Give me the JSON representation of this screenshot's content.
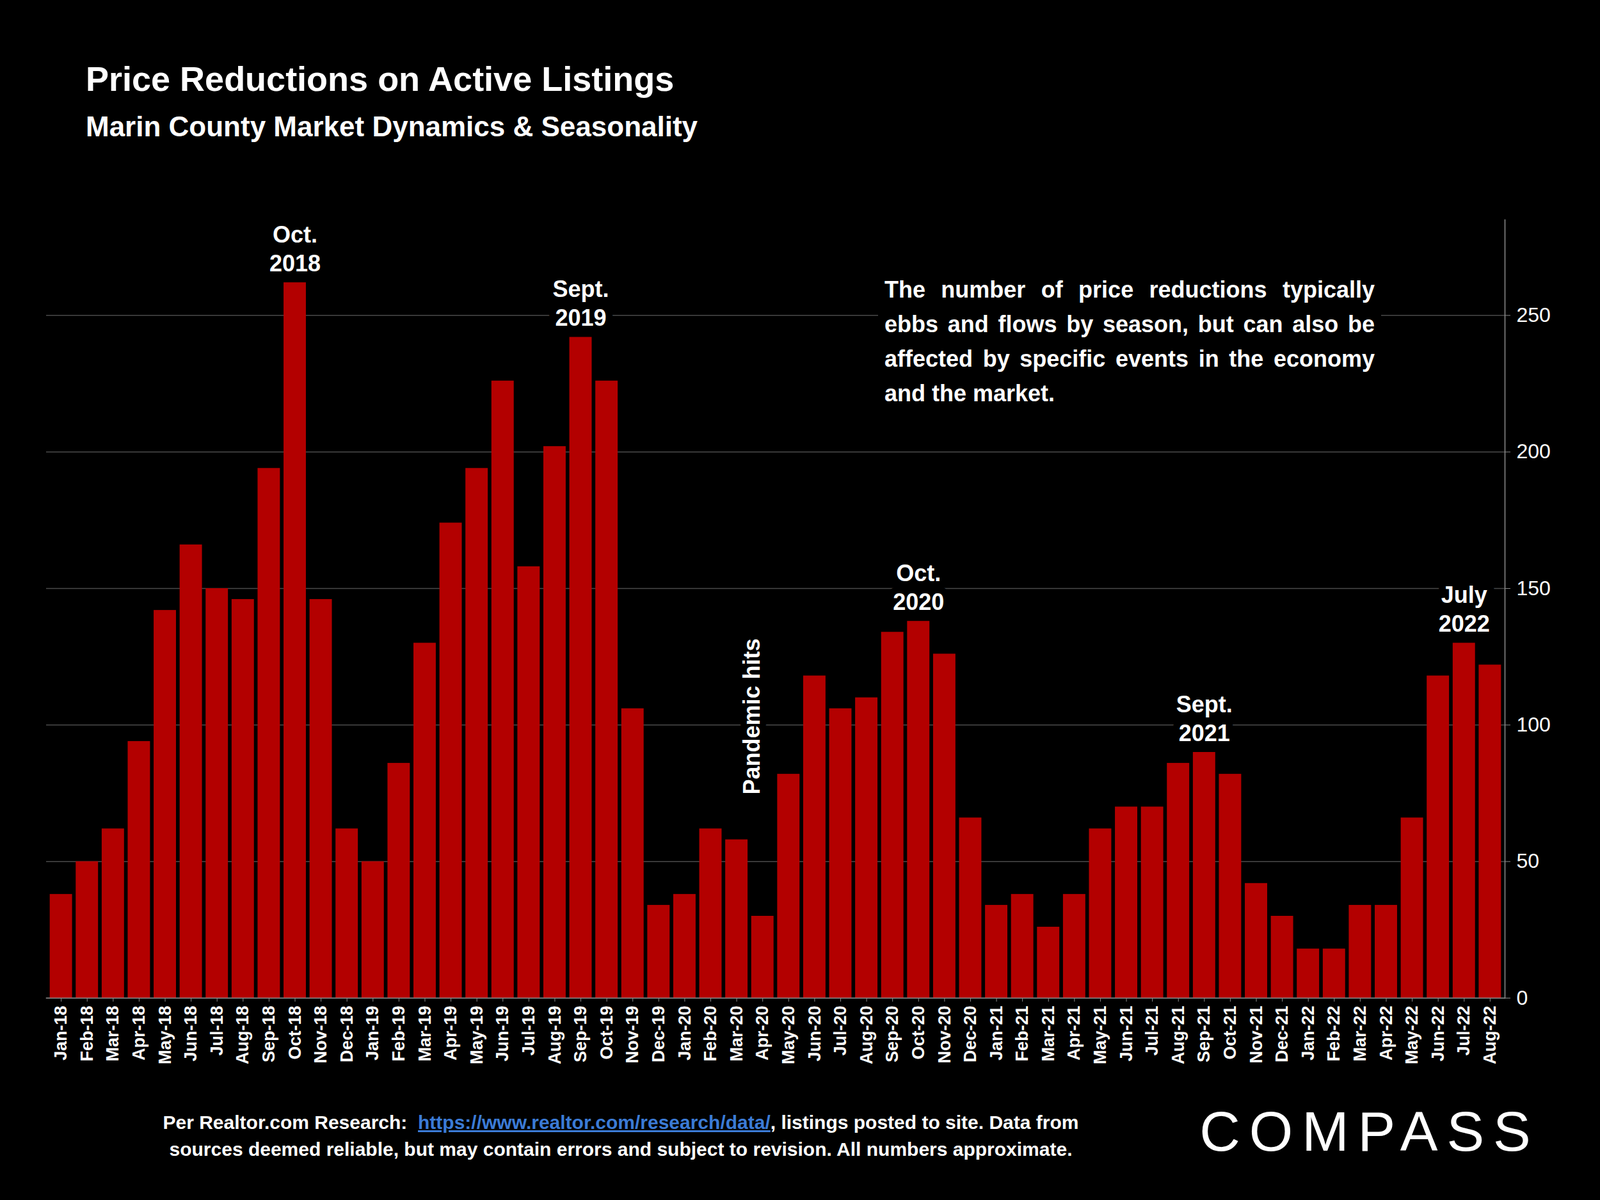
{
  "chart_data": {
    "type": "bar",
    "title": "Price Reductions on Active Listings",
    "subtitle": "Marin County Market Dynamics & Seasonality",
    "categories": [
      "Jan-18",
      "Feb-18",
      "Mar-18",
      "Apr-18",
      "May-18",
      "Jun-18",
      "Jul-18",
      "Aug-18",
      "Sep-18",
      "Oct-18",
      "Nov-18",
      "Dec-18",
      "Jan-19",
      "Feb-19",
      "Mar-19",
      "Apr-19",
      "May-19",
      "Jun-19",
      "Jul-19",
      "Aug-19",
      "Sep-19",
      "Oct-19",
      "Nov-19",
      "Dec-19",
      "Jan-20",
      "Feb-20",
      "Mar-20",
      "Apr-20",
      "May-20",
      "Jun-20",
      "Jul-20",
      "Aug-20",
      "Sep-20",
      "Oct-20",
      "Nov-20",
      "Dec-20",
      "Jan-21",
      "Feb-21",
      "Mar-21",
      "Apr-21",
      "May-21",
      "Jun-21",
      "Jul-21",
      "Aug-21",
      "Sep-21",
      "Oct-21",
      "Nov-21",
      "Dec-21",
      "Jan-22",
      "Feb-22",
      "Mar-22",
      "Apr-22",
      "May-22",
      "Jun-22",
      "Jul-22",
      "Aug-22"
    ],
    "values": [
      38,
      50,
      62,
      94,
      142,
      166,
      150,
      146,
      194,
      262,
      146,
      62,
      50,
      86,
      130,
      174,
      194,
      226,
      158,
      202,
      242,
      226,
      106,
      34,
      38,
      62,
      58,
      30,
      82,
      118,
      106,
      110,
      134,
      138,
      126,
      66,
      34,
      38,
      26,
      38,
      62,
      70,
      70,
      86,
      90,
      82,
      42,
      30,
      18,
      18,
      34,
      34,
      66,
      118,
      130,
      122
    ],
    "color": "#b30000",
    "ylim": [
      0,
      285
    ],
    "yticks": [
      0,
      50,
      100,
      150,
      200,
      250
    ],
    "grid": true,
    "peak_labels": [
      {
        "category": "Oct-18",
        "text": "Oct.\n2018"
      },
      {
        "category": "Sep-19",
        "text": "Sept.\n2019"
      },
      {
        "category": "Oct-20",
        "text": "Oct.\n2020"
      },
      {
        "category": "Sep-21",
        "text": "Sept.\n2021"
      },
      {
        "category": "Jul-22",
        "text": "July\n2022"
      }
    ],
    "vertical_labels": [
      {
        "category": "Apr-20",
        "text": "Pandemic hits"
      }
    ],
    "note": "The number of price reductions typically ebbs and flows by season, but can also be affected by specific events in the economy and the market.",
    "source": {
      "text_before_link": "Per Realtor.com Research:",
      "link": "https://www.realtor.com/research/data/",
      "text_after_link": ", listings posted to site. Data from",
      "second_line": "sources deemed reliable, but may contain errors and subject to revision. All numbers approximate."
    },
    "logo": "COMPASS"
  }
}
